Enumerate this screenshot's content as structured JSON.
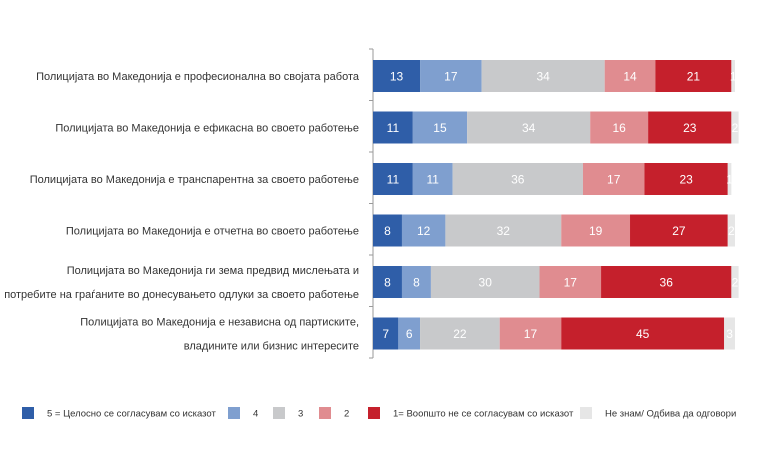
{
  "chart_data": {
    "type": "bar",
    "orientation": "horizontal",
    "stacked": true,
    "xlim": [
      0,
      100
    ],
    "grid": false,
    "legend_position": "bottom",
    "categories": [
      [
        "Полицијата во Македонија е професионална во својата работа"
      ],
      [
        "Полицијата во Македонија е ефикасна во своето работење"
      ],
      [
        "Полицијата во Македонија е транспарентна за своето работење"
      ],
      [
        "Полицијата во Македонија е отчетна во своето работење"
      ],
      [
        "Полицијата во Македонија ги зема предвид мислењата и",
        "потребите на граѓаните во донесувањето одлуки за своето работење"
      ],
      [
        "Полицијата во Македонија е независна од партиските,",
        "владините или бизнис интересите"
      ]
    ],
    "series": [
      {
        "name": "5 = Целосно се согласувам со исказот",
        "color": "#2f5ea8",
        "text_color": "#ffffff",
        "values": [
          13,
          11,
          11,
          8,
          8,
          7
        ]
      },
      {
        "name": "4",
        "color": "#7f9fcf",
        "text_color": "#ffffff",
        "values": [
          17,
          15,
          11,
          12,
          8,
          6
        ]
      },
      {
        "name": "3",
        "color": "#c8c9cb",
        "text_color": "#ffffff",
        "values": [
          34,
          34,
          36,
          32,
          30,
          22
        ]
      },
      {
        "name": "2",
        "color": "#e08c90",
        "text_color": "#ffffff",
        "values": [
          14,
          16,
          17,
          19,
          17,
          17
        ]
      },
      {
        "name": "1= Воопшто не се согласувам со исказот",
        "color": "#c5202c",
        "text_color": "#ffffff",
        "values": [
          21,
          23,
          23,
          27,
          36,
          45
        ]
      },
      {
        "name": "Не знам/ Одбива да одговори",
        "color": "#e6e6e6",
        "text_color": "#ffffff",
        "values": [
          1,
          2,
          1,
          2,
          2,
          3
        ]
      }
    ]
  }
}
